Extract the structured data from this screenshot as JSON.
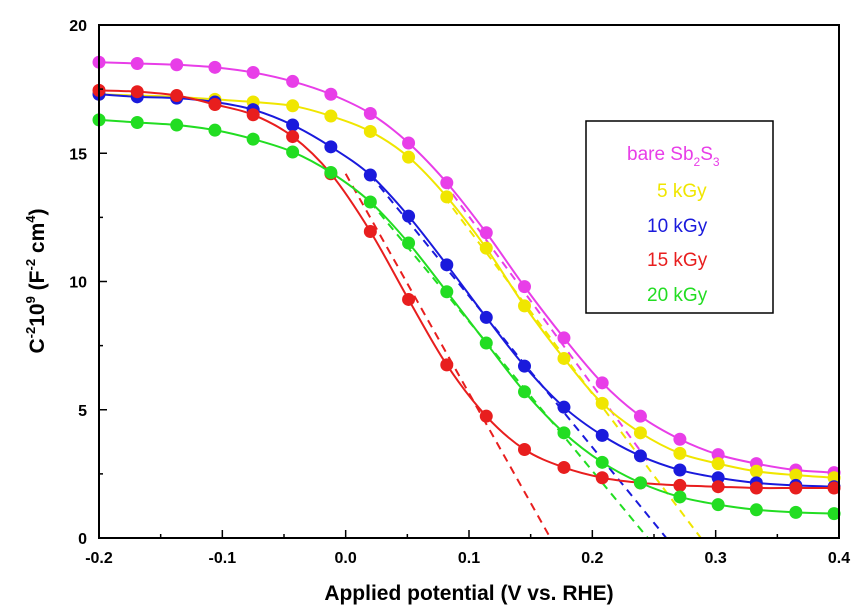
{
  "chart_data": {
    "type": "scatter",
    "xlabel": "Applied potential (V vs. RHE)",
    "ylabel": {
      "base": "C",
      "exp1": "-2",
      "mid": "10",
      "exp2": "9",
      "unit_open": " (F",
      "exp3": "-2",
      "unit_mid": " cm",
      "exp4": "4",
      "unit_close": ")"
    },
    "xlim": [
      -0.2,
      0.4
    ],
    "ylim": [
      0,
      20
    ],
    "xticks": [
      -0.2,
      -0.1,
      0.0,
      0.1,
      0.2,
      0.3,
      0.4
    ],
    "xtick_labels": [
      "-0.2",
      "-0.1",
      "0.0",
      "0.1",
      "0.2",
      "0.3",
      "0.4"
    ],
    "yticks": [
      0,
      5,
      10,
      15,
      20
    ],
    "ytick_labels": [
      "0",
      "5",
      "10",
      "15",
      "20"
    ],
    "grid": false,
    "legend_position": "right",
    "x": [
      -0.2,
      -0.169,
      -0.137,
      -0.106,
      -0.075,
      -0.043,
      -0.012,
      0.02,
      0.051,
      0.082,
      0.114,
      0.145,
      0.177,
      0.208,
      0.239,
      0.271,
      0.302,
      0.333,
      0.365,
      0.396
    ],
    "series": [
      {
        "name": "bare Sb2S3",
        "legend": {
          "base": "bare Sb",
          "sub1": "2",
          "mid": "S",
          "sub2": "3"
        },
        "color": "#e83ee8",
        "values": [
          18.55,
          18.5,
          18.45,
          18.35,
          18.15,
          17.8,
          17.3,
          16.55,
          15.4,
          13.85,
          11.9,
          9.8,
          7.8,
          6.05,
          4.75,
          3.85,
          3.25,
          2.9,
          2.65,
          2.55
        ],
        "fit_line": [
          [
            0.08,
            13.85
          ],
          [
            0.245,
            3.0
          ]
        ]
      },
      {
        "name": "5 kGy",
        "legend": {
          "base": "5 kGy"
        },
        "color": "#f0e600",
        "values": [
          17.3,
          17.25,
          17.2,
          17.1,
          17.0,
          16.85,
          16.45,
          15.85,
          14.85,
          13.3,
          11.3,
          9.05,
          7.0,
          5.25,
          4.1,
          3.3,
          2.9,
          2.6,
          2.45,
          2.35
        ],
        "fit_line": [
          [
            0.08,
            13.3
          ],
          [
            0.288,
            0
          ]
        ]
      },
      {
        "name": "10 kGy",
        "legend": {
          "base": "10 kGy"
        },
        "color": "#1a1adc",
        "values": [
          17.3,
          17.2,
          17.15,
          17.0,
          16.7,
          16.1,
          15.25,
          14.15,
          12.55,
          10.65,
          8.6,
          6.7,
          5.1,
          4.0,
          3.2,
          2.65,
          2.35,
          2.15,
          2.05,
          2.0
        ],
        "fit_line": [
          [
            0.02,
            14.15
          ],
          [
            0.26,
            0
          ]
        ]
      },
      {
        "name": "15 kGy",
        "legend": {
          "base": "15 kGy"
        },
        "color": "#e81e1e",
        "values": [
          17.45,
          17.4,
          17.25,
          16.9,
          16.5,
          15.65,
          14.2,
          11.95,
          9.3,
          6.75,
          4.75,
          3.45,
          2.75,
          2.35,
          2.15,
          2.05,
          2.0,
          1.95,
          1.95,
          1.95
        ],
        "fit_line": [
          [
            0.0,
            14.2
          ],
          [
            0.166,
            0
          ]
        ]
      },
      {
        "name": "20 kGy",
        "legend": {
          "base": "20 kGy"
        },
        "color": "#22dd22",
        "values": [
          16.3,
          16.2,
          16.1,
          15.9,
          15.55,
          15.05,
          14.25,
          13.1,
          11.5,
          9.6,
          7.6,
          5.7,
          4.1,
          2.95,
          2.15,
          1.6,
          1.3,
          1.1,
          1.0,
          0.95
        ],
        "fit_line": [
          [
            0.02,
            13.1
          ],
          [
            0.245,
            0
          ]
        ]
      }
    ]
  }
}
